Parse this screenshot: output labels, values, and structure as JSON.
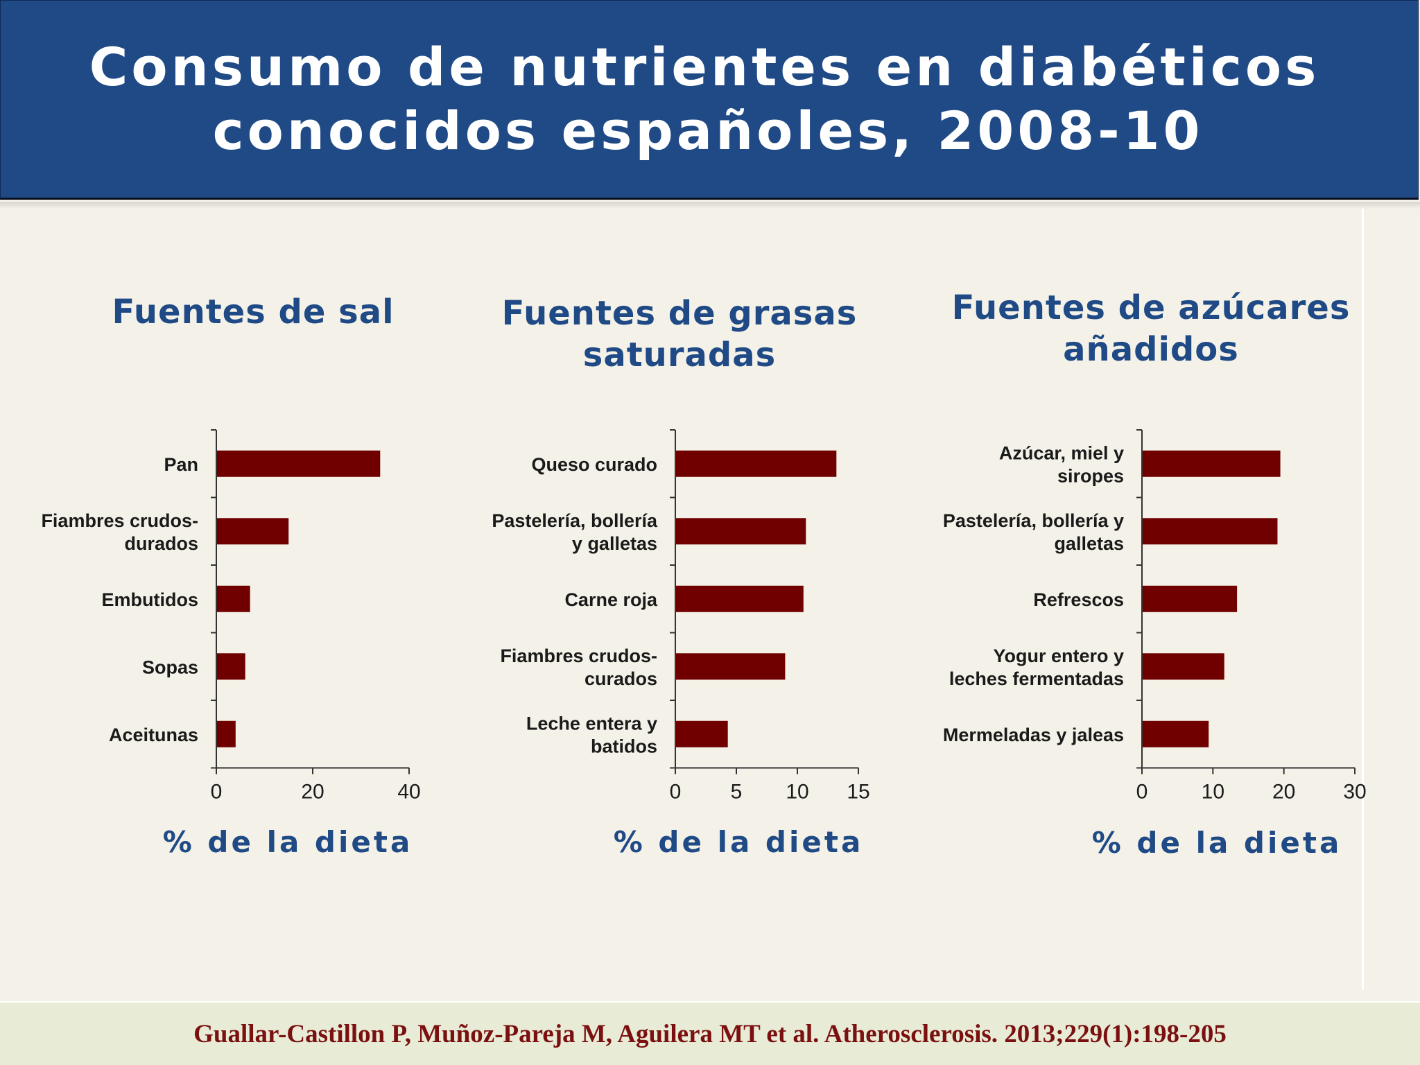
{
  "slide": {
    "title_line1": "Consumo de nutrientes en diabéticos",
    "title_line2": "conocidos españoles, 2008-10",
    "citation": "Guallar-Castillon P, Muñoz-Pareja M, Aguilera MT et al. Atherosclerosis. 2013;229(1):198-205"
  },
  "colors": {
    "header_bg": "#1f4a86",
    "bar": "#700000",
    "accent_text": "#1f4a86",
    "citation": "#7a1010",
    "background": "#f4f2e8"
  },
  "chart_data": [
    {
      "type": "bar",
      "orientation": "horizontal",
      "title_lines": [
        "Fuentes de sal"
      ],
      "categories": [
        [
          "Pan"
        ],
        [
          "Fiambres crudos-",
          "durados"
        ],
        [
          "Embutidos"
        ],
        [
          "Sopas"
        ],
        [
          "Aceitunas"
        ]
      ],
      "values": [
        34,
        15,
        7,
        6,
        4
      ],
      "xlabel": "% de la dieta",
      "xlim": [
        0,
        40
      ],
      "xticks": [
        0,
        20,
        40
      ],
      "grid": false,
      "legend": "none"
    },
    {
      "type": "bar",
      "orientation": "horizontal",
      "title_lines": [
        "Fuentes de grasas",
        "saturadas"
      ],
      "categories": [
        [
          "Queso curado"
        ],
        [
          "Pastelería, bollería",
          "y galletas"
        ],
        [
          "Carne roja"
        ],
        [
          "Fiambres crudos-",
          "curados"
        ],
        [
          "Leche entera y",
          "batidos"
        ]
      ],
      "values": [
        13.2,
        10.7,
        10.5,
        9,
        4.3
      ],
      "xlabel": "% de la dieta",
      "xlim": [
        0,
        15
      ],
      "xticks": [
        0,
        5,
        10,
        15
      ],
      "grid": false,
      "legend": "none"
    },
    {
      "type": "bar",
      "orientation": "horizontal",
      "title_lines": [
        "Fuentes de azúcares",
        "añadidos"
      ],
      "categories": [
        [
          "Azúcar, miel y",
          "siropes"
        ],
        [
          "Pastelería, bollería y",
          "galletas"
        ],
        [
          "Refrescos"
        ],
        [
          "Yogur entero y",
          "leches fermentadas"
        ],
        [
          "Mermeladas y jaleas"
        ]
      ],
      "values": [
        19.5,
        19.1,
        13.4,
        11.6,
        9.4
      ],
      "xlabel": "% de la dieta",
      "xlim": [
        0,
        30
      ],
      "xticks": [
        0,
        10,
        20,
        30
      ],
      "grid": false,
      "legend": "none"
    }
  ]
}
